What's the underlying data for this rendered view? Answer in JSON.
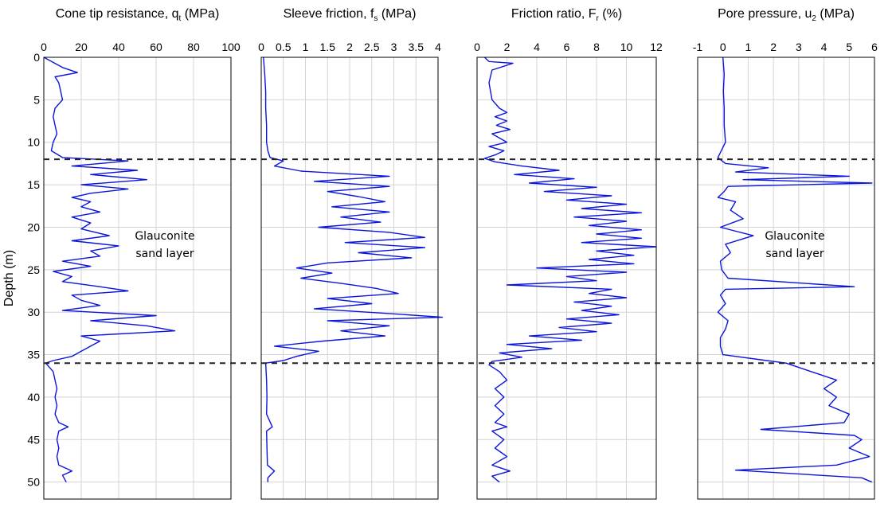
{
  "figure": {
    "ylabel": "Depth (m)",
    "y_ticks": [
      0,
      5,
      10,
      15,
      20,
      25,
      30,
      35,
      40,
      45,
      50
    ],
    "ylim": [
      0,
      52
    ],
    "y_inverted": true,
    "line_color": "#0a14dc",
    "boundary_depths": [
      12,
      36
    ],
    "annotation": "Glauconite sand layer"
  },
  "chart_data": [
    {
      "type": "line",
      "title_main": "Cone tip resistance, q",
      "title_sub": "t",
      "title_unit": " (MPa)",
      "xlim": [
        0,
        100
      ],
      "x_ticks": [
        0,
        20,
        40,
        60,
        80,
        100
      ],
      "annotation_lines": [
        "Glauconite",
        "sand layer"
      ],
      "series": [
        {
          "depth": [
            0,
            0.6,
            1.2,
            1.8,
            2.3,
            3,
            4,
            5,
            6,
            7,
            8,
            9,
            10,
            11,
            11.8,
            12.2,
            12.8,
            13.3,
            13.8,
            14.4,
            15,
            15.5,
            16,
            16.5,
            17,
            17.6,
            18.2,
            18.8,
            19.5,
            20.2,
            21,
            21.6,
            22.2,
            22.8,
            23.4,
            24,
            24.6,
            25.2,
            25.8,
            26.4,
            27,
            27.5,
            28,
            28.6,
            29.2,
            29.8,
            30.4,
            31,
            31.6,
            32.2,
            32.8,
            33.4,
            34,
            34.6,
            35.2,
            35.7,
            36,
            37,
            38,
            39,
            40,
            41,
            42,
            43,
            43.5,
            44,
            45,
            46,
            47,
            48,
            48.7,
            49.2,
            50
          ],
          "values": [
            0,
            5,
            10,
            18,
            6,
            8,
            9,
            10,
            6,
            5,
            6,
            7,
            5,
            4,
            10,
            45,
            15,
            50,
            25,
            55,
            20,
            45,
            25,
            15,
            25,
            20,
            30,
            15,
            25,
            20,
            35,
            15,
            40,
            25,
            30,
            10,
            25,
            5,
            15,
            10,
            30,
            45,
            15,
            20,
            30,
            10,
            60,
            25,
            55,
            70,
            20,
            30,
            25,
            20,
            15,
            5,
            1,
            5,
            6,
            7,
            6,
            7,
            6,
            8,
            13,
            8,
            7,
            8,
            7,
            8,
            15,
            10,
            12
          ]
        }
      ]
    },
    {
      "type": "line",
      "title_main": "Sleeve friction, f",
      "title_sub": "s",
      "title_unit": " (MPa)",
      "xlim": [
        0,
        4
      ],
      "x_ticks": [
        0,
        0.5,
        1,
        1.5,
        2,
        2.5,
        3,
        3.5,
        4
      ],
      "series": [
        {
          "depth": [
            0,
            2,
            4,
            6,
            8,
            10,
            11,
            11.8,
            12.2,
            12.8,
            13.4,
            14,
            14.6,
            15.2,
            15.8,
            16.4,
            17,
            17.6,
            18.2,
            18.8,
            19.4,
            20,
            20.6,
            21.2,
            21.8,
            22.4,
            23,
            23.6,
            24.2,
            24.8,
            25.4,
            26,
            26.6,
            27.2,
            27.8,
            28.4,
            29,
            29.6,
            30.2,
            30.6,
            31,
            31.6,
            32.2,
            32.8,
            33.4,
            34,
            34.6,
            35.2,
            35.7,
            36,
            38,
            40,
            42,
            43.5,
            44,
            46,
            48,
            48.7,
            49.5,
            50
          ],
          "values": [
            0.05,
            0.08,
            0.1,
            0.1,
            0.12,
            0.12,
            0.15,
            0.2,
            0.5,
            0.3,
            0.9,
            2.9,
            1.2,
            2.9,
            1.5,
            2.2,
            2.8,
            1.6,
            2.9,
            1.8,
            2.7,
            1.3,
            2.9,
            3.7,
            1.9,
            3.7,
            2.2,
            3.4,
            1.5,
            0.8,
            1.6,
            0.9,
            1.8,
            2.6,
            3.1,
            1.5,
            2.5,
            1.2,
            3.0,
            4.1,
            1.5,
            2.9,
            1.8,
            2.8,
            1.4,
            0.3,
            1.3,
            0.8,
            0.5,
            0.1,
            0.12,
            0.13,
            0.12,
            0.25,
            0.12,
            0.13,
            0.14,
            0.3,
            0.15,
            0.15
          ]
        }
      ]
    },
    {
      "type": "line",
      "title_main": "Friction ratio, F",
      "title_sub": "r",
      "title_unit": " (%)",
      "xlim": [
        0,
        12
      ],
      "x_ticks": [
        0,
        2,
        4,
        6,
        8,
        10,
        12
      ],
      "series": [
        {
          "depth": [
            0,
            0.5,
            0.7,
            1.5,
            3,
            5,
            6,
            6.5,
            7,
            7.5,
            8,
            8.5,
            9,
            9.5,
            10,
            10.5,
            11,
            11.5,
            11.9,
            12.3,
            12.8,
            13.3,
            13.8,
            14.3,
            14.8,
            15.3,
            15.8,
            16.3,
            16.8,
            17.3,
            17.8,
            18.3,
            18.8,
            19.3,
            19.8,
            20.3,
            20.8,
            21.3,
            21.8,
            22.3,
            22.8,
            23.3,
            23.8,
            24.3,
            24.8,
            25.3,
            25.8,
            26.3,
            26.8,
            27.3,
            27.8,
            28.3,
            28.8,
            29.3,
            29.8,
            30.3,
            30.8,
            31.3,
            31.8,
            32.3,
            32.8,
            33.3,
            33.8,
            34.3,
            34.8,
            35.3,
            35.8,
            36.2,
            37,
            38,
            39,
            40,
            41,
            42,
            43,
            43.5,
            44,
            45,
            46,
            47,
            48,
            48.7,
            49.3,
            50
          ],
          "values": [
            0.5,
            0.8,
            2.4,
            1.0,
            0.8,
            1.0,
            1.5,
            2.0,
            1.2,
            2.0,
            1.3,
            2.2,
            1.0,
            1.5,
            2.0,
            0.8,
            1.8,
            1.2,
            0.5,
            1.2,
            3.0,
            5.5,
            2.5,
            6.5,
            3.5,
            8.0,
            4.5,
            9.0,
            6.0,
            10.0,
            7.0,
            11.0,
            6.5,
            10.0,
            7.5,
            11.0,
            8.0,
            11.0,
            7.0,
            12.0,
            8.0,
            10.5,
            7.5,
            10.5,
            4.0,
            10.0,
            6.0,
            8.0,
            2.0,
            9.0,
            7.5,
            10.0,
            6.5,
            9.0,
            7.0,
            9.5,
            6.0,
            9.0,
            5.5,
            8.0,
            3.5,
            7.0,
            2.0,
            5.0,
            1.5,
            3.0,
            1.0,
            0.8,
            1.5,
            2.0,
            1.2,
            1.8,
            1.2,
            1.8,
            1.2,
            2.0,
            1.0,
            1.8,
            1.2,
            2.0,
            1.0,
            2.2,
            1.0,
            1.5
          ]
        }
      ]
    },
    {
      "type": "line",
      "title_main": "Pore pressure, u",
      "title_sub": "2",
      "title_unit": " (MPa)",
      "xlim": [
        -1,
        6
      ],
      "x_ticks": [
        -1,
        0,
        1,
        2,
        3,
        4,
        5,
        6
      ],
      "annotation_lines": [
        "Glauconite",
        "sand layer"
      ],
      "series": [
        {
          "depth": [
            0,
            2,
            4,
            6,
            8,
            10,
            11.8,
            12.5,
            13,
            13.5,
            14,
            14.4,
            14.8,
            15.2,
            15.8,
            16.5,
            17,
            18,
            19,
            20,
            21,
            22,
            23,
            24,
            25,
            26,
            27,
            27.3,
            28,
            29,
            30,
            31,
            32,
            33,
            34,
            35,
            35.6,
            36,
            36.5,
            37,
            38,
            39,
            40,
            41,
            42,
            43,
            43.8,
            44.5,
            45,
            46,
            47,
            48,
            48.6,
            49.5,
            50
          ],
          "values": [
            0,
            0.05,
            0.02,
            0.05,
            0.05,
            0.1,
            -0.2,
            0.1,
            1.8,
            0.5,
            5.0,
            0.8,
            5.9,
            0.2,
            0.05,
            -0.2,
            0.5,
            0.3,
            0.8,
            -0.1,
            1.2,
            0.1,
            0.3,
            -0.1,
            -0.05,
            0.2,
            5.2,
            0.1,
            -0.1,
            0.1,
            -0.2,
            0.2,
            0.1,
            -0.1,
            -0.1,
            0.0,
            1.5,
            2.5,
            3.0,
            3.5,
            4.5,
            4.0,
            4.5,
            4.2,
            5.0,
            4.8,
            1.5,
            5.2,
            5.5,
            5.0,
            5.8,
            4.5,
            0.5,
            5.5,
            5.9
          ]
        }
      ]
    }
  ]
}
